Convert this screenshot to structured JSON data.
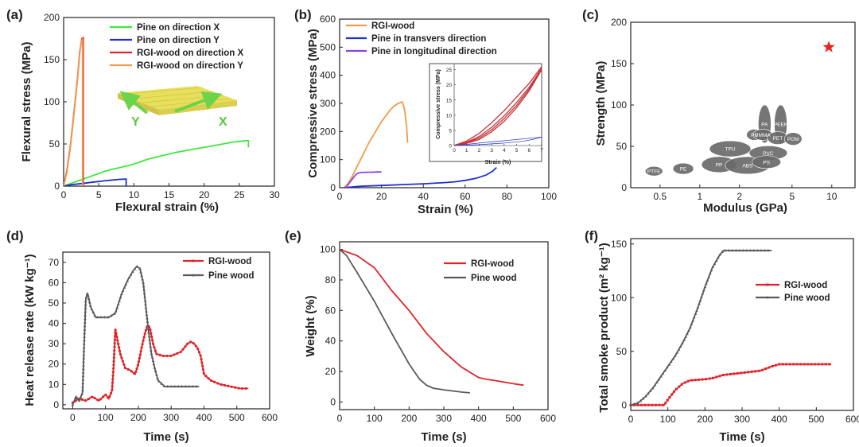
{
  "colors": {
    "green": "#3ee83c",
    "blue": "#1f2fd0",
    "red": "#e0242a",
    "orange": "#f29b49",
    "purple": "#8a44e0",
    "darkred": "#c8343a",
    "gray": "#5a5a5a",
    "star": "#e82020",
    "plate_top": "#e8df5c",
    "plate_side": "#cfc34a",
    "arrow": "#6cd44a"
  },
  "chart_data": [
    {
      "id": "a",
      "panel_label": "(a)",
      "type": "line",
      "xlabel": "Flexural strain (%)",
      "ylabel": "Flexural stress (MPa)",
      "xlim": [
        0,
        30
      ],
      "ylim": [
        0,
        200
      ],
      "xticks": [
        0,
        5,
        10,
        15,
        20,
        25,
        30
      ],
      "yticks": [
        0,
        50,
        100,
        150,
        200
      ],
      "legend_position": "top-right",
      "annotations": [
        "Y",
        "X"
      ],
      "series": [
        {
          "name": "Pine on direction X",
          "color": "green",
          "x": [
            0,
            2,
            4,
            5,
            6,
            7,
            8,
            10,
            12,
            14,
            16,
            18,
            20,
            22,
            24,
            25,
            26,
            26.3,
            26.3
          ],
          "y": [
            0,
            6,
            12,
            15,
            18,
            20,
            22,
            26,
            32,
            36,
            40,
            43,
            46,
            49,
            52,
            53,
            54,
            54,
            46
          ]
        },
        {
          "name": "Pine on direction Y",
          "color": "blue",
          "x": [
            0,
            1,
            2,
            3,
            4,
            5,
            6,
            7,
            8,
            8.7,
            8.9,
            8.9
          ],
          "y": [
            0,
            1.5,
            2.5,
            3.5,
            4.5,
            5.5,
            6.5,
            7.3,
            8,
            8.3,
            8.3,
            0
          ]
        },
        {
          "name": "RGI-wood on direction X",
          "color": "red",
          "x": [
            0,
            0.5,
            1,
            1.5,
            2,
            2.3,
            2.6,
            2.8,
            2.8
          ],
          "y": [
            0,
            20,
            50,
            90,
            130,
            160,
            175,
            176,
            0
          ]
        },
        {
          "name": "RGI-wood on direction Y",
          "color": "orange",
          "x": [
            0,
            0.5,
            1,
            1.5,
            2,
            2.3,
            2.5,
            2.7,
            2.7
          ],
          "y": [
            0,
            18,
            48,
            88,
            128,
            158,
            172,
            174,
            0
          ]
        }
      ]
    },
    {
      "id": "b",
      "panel_label": "(b)",
      "type": "line",
      "xlabel": "Strain (%)",
      "ylabel": "Compressive stress (MPa)",
      "xlim": [
        0,
        100
      ],
      "ylim": [
        0,
        600
      ],
      "xticks": [
        0,
        20,
        40,
        60,
        80,
        100
      ],
      "yticks": [
        0,
        100,
        200,
        300,
        400,
        500,
        600
      ],
      "legend_position": "top-left",
      "series": [
        {
          "name": "RGI-wood",
          "color": "orange",
          "x": [
            2,
            4,
            6,
            8,
            10,
            12,
            14,
            16,
            18,
            20,
            22,
            24,
            26,
            28,
            30,
            31,
            32,
            32.5
          ],
          "y": [
            0,
            15,
            40,
            70,
            100,
            130,
            160,
            185,
            210,
            235,
            255,
            275,
            290,
            300,
            305,
            280,
            220,
            160
          ]
        },
        {
          "name": "Pine in transvers direction",
          "color": "blue",
          "x": [
            2,
            10,
            20,
            30,
            40,
            50,
            55,
            60,
            65,
            70,
            73,
            75
          ],
          "y": [
            0,
            5,
            8,
            11,
            14,
            18,
            21,
            26,
            33,
            45,
            58,
            72
          ]
        },
        {
          "name": "Pine in longitudinal direction",
          "color": "purple",
          "x": [
            3,
            5,
            7,
            8,
            9,
            10,
            12,
            15,
            18,
            20
          ],
          "y": [
            0,
            20,
            40,
            48,
            52,
            54,
            55,
            55,
            56,
            56
          ]
        }
      ],
      "inset": {
        "type": "line",
        "xlabel": "Strain (%)",
        "ylabel": "Compressive stress (MPa)",
        "xlim": [
          0,
          7
        ],
        "ylim": [
          0,
          27
        ],
        "xticks": [
          0,
          1,
          2,
          3,
          4,
          5,
          6,
          7
        ],
        "yticks": [
          0,
          5,
          10,
          15,
          20,
          25
        ],
        "series": [
          {
            "color": "darkred",
            "x": [
              0,
              1,
              2,
              3,
              4,
              5,
              6,
              7
            ],
            "y": [
              0,
              1.5,
              4,
              7.5,
              11.5,
              16,
              20.5,
              26
            ]
          },
          {
            "color": "darkred",
            "x": [
              0,
              1,
              2,
              3,
              4,
              5,
              6,
              7
            ],
            "y": [
              0,
              0.7,
              2,
              4.5,
              8,
              12.5,
              18,
              25
            ]
          },
          {
            "color": "darkred",
            "x": [
              0,
              1,
              2,
              3,
              4,
              5,
              6,
              7
            ],
            "y": [
              0,
              1.1,
              3,
              6,
              9.8,
              14.2,
              19.2,
              25.5
            ]
          },
          {
            "color": "darkred",
            "x": [
              0,
              1,
              2,
              3,
              4,
              5,
              6,
              7
            ],
            "y": [
              0,
              0.9,
              2.5,
              5.2,
              8.9,
              13.3,
              18.6,
              25.2
            ]
          },
          {
            "color": "blue",
            "x": [
              0,
              1,
              2,
              3,
              4,
              5,
              6,
              7
            ],
            "y": [
              0,
              0.4,
              0.8,
              1.2,
              1.6,
              2,
              2.4,
              2.8
            ]
          },
          {
            "color": "blue",
            "x": [
              0,
              2,
              4,
              5.5,
              6.5,
              7
            ],
            "y": [
              0,
              0.3,
              0.8,
              1.4,
              2.2,
              2.8
            ]
          }
        ]
      }
    },
    {
      "id": "c",
      "panel_label": "(c)",
      "type": "scatter",
      "xlabel": "Modulus (GPa)",
      "ylabel": "Strength (MPa)",
      "x_scale": "log",
      "xlim": [
        0.3,
        15
      ],
      "ylim": [
        0,
        200
      ],
      "xticks": [
        0.5,
        1,
        2,
        5,
        10
      ],
      "yticks": [
        0,
        50,
        100,
        150,
        200
      ],
      "point": {
        "x": 9.5,
        "y": 170,
        "marker": "star",
        "color": "star"
      },
      "materials": [
        {
          "label": "PTFE",
          "x": 0.45,
          "y": 20
        },
        {
          "label": "PE",
          "x": 0.75,
          "y": 23
        },
        {
          "label": "PP",
          "x": 1.4,
          "y": 28
        },
        {
          "label": "ABS",
          "x": 2.3,
          "y": 27
        },
        {
          "label": "TPU",
          "x": 1.7,
          "y": 47
        },
        {
          "label": "PVC",
          "x": 3.3,
          "y": 42
        },
        {
          "label": "PS",
          "x": 3.2,
          "y": 31
        },
        {
          "label": "PA",
          "x": 3.1,
          "y": 77
        },
        {
          "label": "PEEK",
          "x": 4.1,
          "y": 77
        },
        {
          "label": "PC",
          "x": 2.6,
          "y": 64
        },
        {
          "label": "PMMA",
          "x": 3.0,
          "y": 64
        },
        {
          "label": "PET",
          "x": 3.9,
          "y": 60
        },
        {
          "label": "POM",
          "x": 5.1,
          "y": 59
        }
      ]
    },
    {
      "id": "d",
      "panel_label": "(d)",
      "type": "line",
      "xlabel": "Time (s)",
      "ylabel": "Heat release rate (kW kg⁻¹)",
      "xlim": [
        -30,
        600
      ],
      "ylim": [
        -2,
        75
      ],
      "xticks": [
        0,
        100,
        200,
        300,
        400,
        500,
        600
      ],
      "yticks": [
        0,
        10,
        20,
        30,
        40,
        50,
        60,
        70
      ],
      "legend_position": "top-right",
      "series": [
        {
          "name": "RGI-wood",
          "color": "red",
          "marker": "circle",
          "x": [
            0,
            20,
            40,
            60,
            80,
            100,
            110,
            120,
            125,
            130,
            135,
            145,
            160,
            175,
            190,
            200,
            210,
            220,
            228,
            235,
            245,
            255,
            275,
            300,
            330,
            350,
            360,
            370,
            380,
            390,
            400,
            420,
            450,
            480,
            510,
            535
          ],
          "y": [
            1,
            3,
            2,
            4,
            2,
            5,
            3,
            7,
            20,
            37,
            33,
            25,
            18,
            17,
            15,
            20,
            28,
            35,
            39,
            38,
            30,
            25,
            24,
            24,
            26,
            30,
            31,
            30,
            28,
            24,
            15,
            12,
            10,
            9,
            8,
            8
          ]
        },
        {
          "name": "Pine wood",
          "color": "gray",
          "marker": "triangle",
          "x": [
            0,
            10,
            20,
            30,
            35,
            40,
            45,
            55,
            70,
            90,
            110,
            130,
            150,
            170,
            185,
            195,
            205,
            215,
            225,
            232,
            240,
            250,
            260,
            280,
            300,
            330,
            360,
            385
          ],
          "y": [
            0,
            4,
            2,
            6,
            30,
            52,
            55,
            48,
            43,
            43,
            43,
            45,
            55,
            62,
            66,
            68,
            67,
            60,
            45,
            35,
            25,
            18,
            12,
            9,
            9,
            9,
            9,
            9
          ]
        }
      ]
    },
    {
      "id": "e",
      "panel_label": "(e)",
      "type": "line",
      "xlabel": "Time (s)",
      "ylabel": "Weight (%)",
      "xlim": [
        0,
        600
      ],
      "ylim": [
        -5,
        105
      ],
      "xticks": [
        0,
        100,
        200,
        300,
        400,
        500,
        600
      ],
      "yticks": [
        0,
        20,
        40,
        60,
        80,
        100
      ],
      "legend_position": "top-right",
      "series": [
        {
          "name": "RGI-wood",
          "color": "red",
          "x": [
            0,
            50,
            100,
            150,
            200,
            250,
            300,
            350,
            400,
            420,
            450,
            500,
            530
          ],
          "y": [
            100,
            96,
            88,
            73,
            60,
            45,
            33,
            23,
            16,
            15,
            14,
            12,
            11
          ]
        },
        {
          "name": "Pine wood",
          "color": "gray",
          "x": [
            0,
            20,
            50,
            100,
            150,
            200,
            230,
            250,
            270,
            300,
            350,
            375
          ],
          "y": [
            100,
            96,
            85,
            66,
            45,
            25,
            15,
            11,
            9,
            8,
            6.5,
            6
          ]
        }
      ]
    },
    {
      "id": "f",
      "panel_label": "(f)",
      "type": "line",
      "xlabel": "Time (s)",
      "ylabel": "Total smoke product (m² kg⁻¹)",
      "xlim": [
        0,
        600
      ],
      "ylim": [
        -5,
        155
      ],
      "xticks": [
        0,
        100,
        200,
        300,
        400,
        500,
        600
      ],
      "yticks": [
        0,
        50,
        100,
        150
      ],
      "legend_position": "middle-right",
      "series": [
        {
          "name": "RGI-wood",
          "color": "red",
          "marker": "square",
          "x": [
            0,
            60,
            90,
            100,
            120,
            140,
            160,
            200,
            220,
            250,
            300,
            350,
            380,
            400,
            450,
            540
          ],
          "y": [
            0,
            0,
            0,
            5,
            14,
            20,
            23,
            24,
            25,
            28,
            30,
            32,
            36,
            38,
            38,
            38
          ]
        },
        {
          "name": "Pine wood",
          "color": "gray",
          "marker": "triangle",
          "x": [
            0,
            20,
            40,
            60,
            80,
            100,
            120,
            140,
            160,
            180,
            200,
            220,
            240,
            250,
            260,
            300,
            350,
            380
          ],
          "y": [
            0,
            2,
            8,
            16,
            26,
            36,
            46,
            58,
            72,
            90,
            110,
            128,
            140,
            144,
            144,
            144,
            144,
            144
          ]
        }
      ]
    }
  ]
}
